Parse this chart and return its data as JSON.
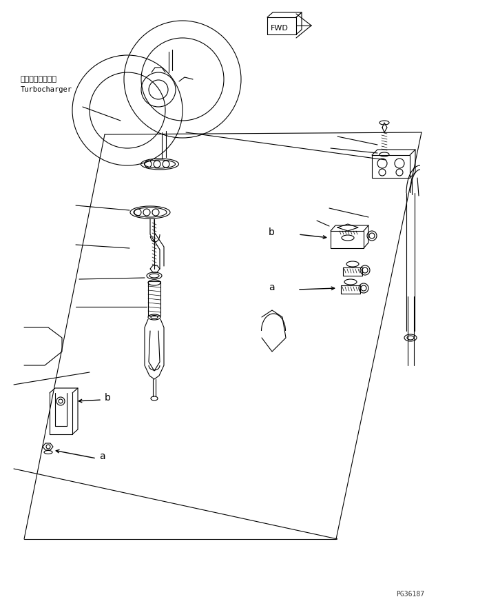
{
  "bg_color": "#ffffff",
  "line_color": "#000000",
  "fig_width": 7.1,
  "fig_height": 8.82,
  "dpi": 100,
  "part_number": "PG36187",
  "fwd_label": "FWD",
  "label_a_left": "a",
  "label_b_left": "b",
  "label_a_right": "a",
  "label_b_right": "b",
  "turbo_label_jp": "ターボチャージャ",
  "turbo_label_en": "Turbocharger"
}
